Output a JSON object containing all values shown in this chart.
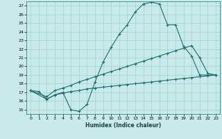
{
  "xlabel": "Humidex (Indice chaleur)",
  "bg_color": "#c8eaea",
  "grid_color": "#9fcfcf",
  "line_color": "#1a6b6b",
  "xlim": [
    -0.5,
    23.5
  ],
  "ylim": [
    14.5,
    27.5
  ],
  "xticks": [
    0,
    1,
    2,
    3,
    4,
    5,
    6,
    7,
    8,
    9,
    10,
    11,
    12,
    13,
    14,
    15,
    16,
    17,
    18,
    19,
    20,
    21,
    22,
    23
  ],
  "yticks": [
    15,
    16,
    17,
    18,
    19,
    20,
    21,
    22,
    23,
    24,
    25,
    26,
    27
  ],
  "line1_x": [
    0,
    1,
    2,
    3,
    4,
    5,
    6,
    7,
    8,
    9,
    10,
    11,
    12,
    13,
    14,
    15,
    16,
    17,
    18,
    19,
    20,
    21,
    22,
    23
  ],
  "line1_y": [
    17.2,
    17.1,
    16.2,
    16.7,
    17.0,
    15.0,
    14.8,
    15.6,
    18.2,
    20.5,
    22.2,
    23.7,
    24.8,
    26.3,
    27.2,
    27.4,
    27.2,
    24.8,
    24.8,
    22.3,
    21.2,
    19.0,
    19.0,
    19.0
  ],
  "line2_x": [
    0,
    2,
    3,
    4,
    5,
    6,
    7,
    8,
    9,
    10,
    11,
    12,
    13,
    14,
    15,
    16,
    17,
    18,
    19,
    20,
    21,
    22,
    23
  ],
  "line2_y": [
    17.2,
    16.5,
    17.2,
    17.5,
    17.8,
    18.2,
    18.5,
    18.8,
    19.1,
    19.4,
    19.7,
    20.0,
    20.3,
    20.6,
    20.9,
    21.2,
    21.5,
    21.8,
    22.1,
    22.4,
    21.0,
    19.2,
    19.0
  ],
  "line3_x": [
    0,
    2,
    3,
    4,
    5,
    6,
    7,
    8,
    9,
    10,
    11,
    12,
    13,
    14,
    15,
    16,
    17,
    18,
    19,
    20,
    21,
    22,
    23
  ],
  "line3_y": [
    17.2,
    16.2,
    16.7,
    16.9,
    17.1,
    17.2,
    17.4,
    17.5,
    17.6,
    17.7,
    17.8,
    17.9,
    18.0,
    18.1,
    18.2,
    18.3,
    18.4,
    18.5,
    18.6,
    18.7,
    18.8,
    18.9,
    19.0
  ]
}
